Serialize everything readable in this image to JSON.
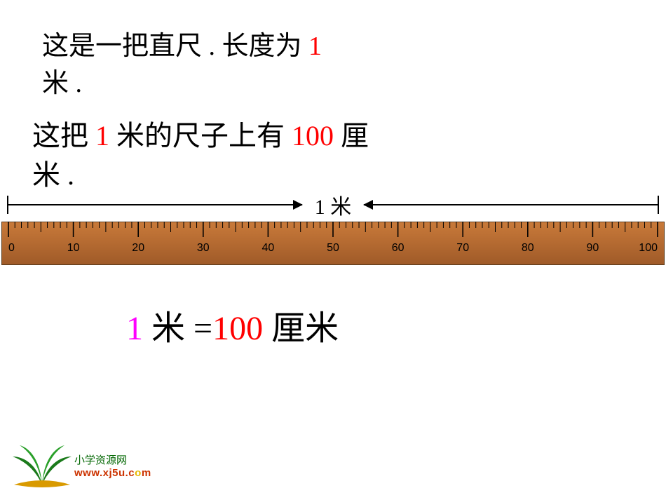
{
  "line1": {
    "part1": "这是一把直尺 . 长度为 ",
    "highlight": "1",
    "part2": " 米 ."
  },
  "line2": {
    "part1": "这把 ",
    "h1": "1",
    "part2": " 米的尺子上有 ",
    "h2": "100",
    "part3": " 厘米 ."
  },
  "rulerLabel": "1 米",
  "ruler": {
    "min": 0,
    "max": 100,
    "majorStep": 10,
    "mediumStep": 5,
    "minorStep": 1,
    "labels": [
      "0",
      "10",
      "20",
      "30",
      "40",
      "50",
      "60",
      "70",
      "80",
      "90",
      "100"
    ],
    "bodyColor": "#c97a3a",
    "bodyDark": "#9f5a28",
    "tickColor": "#000000",
    "labelColor": "#000000",
    "borderColor": "#5a3a1a",
    "widthPx": 946,
    "heightPx": 62,
    "labelFontSize": 16
  },
  "equation": {
    "one": "1",
    "unitM": " 米 ",
    "eq": "=",
    "hundred": "100",
    "unitCm": " 厘米"
  },
  "footer": {
    "cn": "小学资源网",
    "urlPrefix": "www.xj5u.c",
    "urlMid": "o",
    "urlEnd": "m"
  },
  "colors": {
    "red": "#ff0000",
    "magenta": "#ff00ff",
    "black": "#000000",
    "green": "#006600",
    "orange": "#cc3300"
  }
}
